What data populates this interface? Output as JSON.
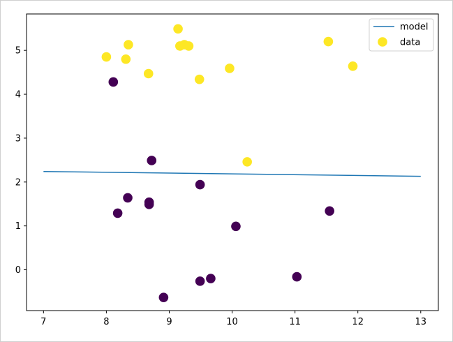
{
  "chart_data": {
    "type": "scatter",
    "title": "",
    "xlabel": "",
    "ylabel": "",
    "xlim": [
      6.73,
      13.28
    ],
    "ylim": [
      -0.93,
      5.83
    ],
    "x_ticks": [
      7,
      8,
      9,
      10,
      11,
      12,
      13
    ],
    "y_ticks": [
      0,
      1,
      2,
      3,
      4,
      5
    ],
    "grid": false,
    "legend_position": "top-right",
    "series": [
      {
        "name": "model",
        "kind": "line",
        "color": "#1f77b4",
        "points": [
          [
            7.0,
            2.24
          ],
          [
            13.0,
            2.13
          ]
        ]
      },
      {
        "name": "data",
        "kind": "scatter",
        "legend_color": "#fde725",
        "class_colors": {
          "0": "#440154",
          "1": "#fde725"
        },
        "points": [
          {
            "x": 8.0,
            "y": 4.85,
            "class": 1
          },
          {
            "x": 8.31,
            "y": 4.8,
            "class": 1
          },
          {
            "x": 8.35,
            "y": 5.13,
            "class": 1
          },
          {
            "x": 8.67,
            "y": 4.47,
            "class": 1
          },
          {
            "x": 9.14,
            "y": 5.49,
            "class": 1
          },
          {
            "x": 9.17,
            "y": 5.1,
            "class": 1
          },
          {
            "x": 9.24,
            "y": 5.13,
            "class": 1
          },
          {
            "x": 9.31,
            "y": 5.1,
            "class": 1
          },
          {
            "x": 9.48,
            "y": 4.34,
            "class": 1
          },
          {
            "x": 9.96,
            "y": 4.59,
            "class": 1
          },
          {
            "x": 10.24,
            "y": 2.46,
            "class": 1
          },
          {
            "x": 11.53,
            "y": 5.2,
            "class": 1
          },
          {
            "x": 11.92,
            "y": 4.64,
            "class": 1
          },
          {
            "x": 8.11,
            "y": 4.28,
            "class": 0
          },
          {
            "x": 8.72,
            "y": 2.49,
            "class": 0
          },
          {
            "x": 8.18,
            "y": 1.29,
            "class": 0
          },
          {
            "x": 8.34,
            "y": 1.64,
            "class": 0
          },
          {
            "x": 8.68,
            "y": 1.54,
            "class": 0
          },
          {
            "x": 8.68,
            "y": 1.49,
            "class": 0
          },
          {
            "x": 9.49,
            "y": 1.94,
            "class": 0
          },
          {
            "x": 10.06,
            "y": 0.99,
            "class": 0
          },
          {
            "x": 11.55,
            "y": 1.34,
            "class": 0
          },
          {
            "x": 8.91,
            "y": -0.63,
            "class": 0
          },
          {
            "x": 9.49,
            "y": -0.26,
            "class": 0
          },
          {
            "x": 9.66,
            "y": -0.2,
            "class": 0
          },
          {
            "x": 11.03,
            "y": -0.16,
            "class": 0
          }
        ]
      }
    ]
  }
}
